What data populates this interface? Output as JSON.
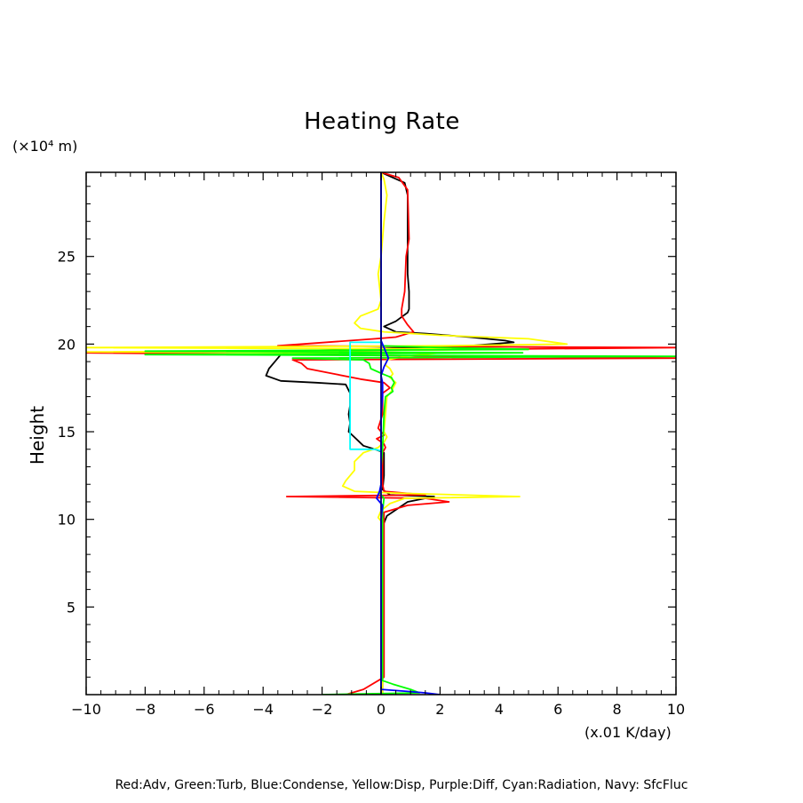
{
  "chart_data": {
    "type": "line",
    "title": "Heating Rate",
    "ylabel": "Height",
    "y_unit": "(×10⁴ m)",
    "x_unit": "(x.01 K/day)",
    "xlim": [
      -10,
      10
    ],
    "ylim": [
      0,
      29.8
    ],
    "xticks": [
      -10,
      -8,
      -6,
      -4,
      -2,
      0,
      2,
      4,
      6,
      8,
      10
    ],
    "yticks": [
      5,
      10,
      15,
      20,
      25
    ],
    "footer": "Red:Adv, Green:Turb, Blue:Condense, Yellow:Disp, Purple:Diff, Cyan:Radiation, Navy: SfcFluc",
    "series": [
      {
        "name": "Black",
        "color": "#000000",
        "points": [
          [
            0,
            29.8
          ],
          [
            0.8,
            29.2
          ],
          [
            0.9,
            28.5
          ],
          [
            0.9,
            24
          ],
          [
            0.95,
            23
          ],
          [
            0.95,
            22
          ],
          [
            0.9,
            21.8
          ],
          [
            0.5,
            21.3
          ],
          [
            0.1,
            21.0
          ],
          [
            0.5,
            20.7
          ],
          [
            1.5,
            20.6
          ],
          [
            3,
            20.4
          ],
          [
            4.2,
            20.2
          ],
          [
            4.5,
            20.1
          ],
          [
            3,
            19.9
          ],
          [
            1,
            19.8
          ],
          [
            -1,
            19.7
          ],
          [
            -3,
            19.6
          ],
          [
            -3.4,
            19.4
          ],
          [
            -3.6,
            19.0
          ],
          [
            -3.8,
            18.6
          ],
          [
            -3.9,
            18.2
          ],
          [
            -3.4,
            17.9
          ],
          [
            -2.2,
            17.8
          ],
          [
            -1.2,
            17.7
          ],
          [
            -1.05,
            17.2
          ],
          [
            -1.05,
            16.5
          ],
          [
            -1.1,
            16
          ],
          [
            -1.05,
            15.5
          ],
          [
            -1.1,
            15
          ],
          [
            -0.85,
            14.6
          ],
          [
            -0.6,
            14.2
          ],
          [
            -0.2,
            14.0
          ],
          [
            0.1,
            13.8
          ],
          [
            0.1,
            12.5
          ],
          [
            0.05,
            11.7
          ],
          [
            0.3,
            11.4
          ],
          [
            1.8,
            11.3
          ],
          [
            0.9,
            11.0
          ],
          [
            0.2,
            10.2
          ],
          [
            0.05,
            9.6
          ],
          [
            0.05,
            6
          ],
          [
            0.05,
            2
          ],
          [
            0.05,
            0
          ]
        ]
      },
      {
        "name": "Red",
        "color": "#ff0000",
        "points": [
          [
            0,
            29.8
          ],
          [
            0.6,
            29.5
          ],
          [
            0.9,
            28.8
          ],
          [
            0.95,
            26
          ],
          [
            0.85,
            25
          ],
          [
            0.8,
            23
          ],
          [
            0.7,
            22
          ],
          [
            0.7,
            21.6
          ],
          [
            0.9,
            21.1
          ],
          [
            1.1,
            20.7
          ],
          [
            0.5,
            20.4
          ],
          [
            -0.2,
            20.3
          ],
          [
            -3.5,
            19.9
          ],
          [
            10,
            19.8
          ],
          [
            -10,
            19.5
          ],
          [
            10,
            19.2
          ],
          [
            -3,
            19.1
          ],
          [
            -2.7,
            18.9
          ],
          [
            -2.5,
            18.6
          ],
          [
            -1.6,
            18.3
          ],
          [
            -0.7,
            18.0
          ],
          [
            0.1,
            17.8
          ],
          [
            0.3,
            17.5
          ],
          [
            0.05,
            17.2
          ],
          [
            0.05,
            16
          ],
          [
            -0.1,
            15.2
          ],
          [
            0.1,
            14.8
          ],
          [
            -0.15,
            14.6
          ],
          [
            0.1,
            14.3
          ],
          [
            0.15,
            14.1
          ],
          [
            0.05,
            13.8
          ],
          [
            0.05,
            12
          ],
          [
            0.1,
            11.6
          ],
          [
            1.5,
            11.4
          ],
          [
            -3.2,
            11.3
          ],
          [
            1.5,
            11.2
          ],
          [
            2.3,
            11.0
          ],
          [
            0.9,
            10.8
          ],
          [
            0.1,
            10.4
          ],
          [
            0.1,
            9.6
          ],
          [
            0.1,
            4
          ],
          [
            0.1,
            1
          ],
          [
            -0.6,
            0.3
          ],
          [
            -1.2,
            0
          ]
        ]
      },
      {
        "name": "Yellow",
        "color": "#ffff00",
        "points": [
          [
            0,
            29.8
          ],
          [
            0.1,
            29.4
          ],
          [
            0.2,
            28.5
          ],
          [
            0.1,
            27
          ],
          [
            0,
            25
          ],
          [
            -0.1,
            24
          ],
          [
            0,
            22.5
          ],
          [
            -0.1,
            22
          ],
          [
            -0.7,
            21.6
          ],
          [
            -0.9,
            21.2
          ],
          [
            -0.7,
            20.9
          ],
          [
            0.1,
            20.7
          ],
          [
            2,
            20.5
          ],
          [
            5,
            20.3
          ],
          [
            6.3,
            20.0
          ],
          [
            2,
            19.9
          ],
          [
            -10,
            19.8
          ],
          [
            5,
            19.7
          ],
          [
            -10,
            19.55
          ],
          [
            2,
            19.5
          ],
          [
            0.8,
            19.3
          ],
          [
            0.2,
            19.1
          ],
          [
            0.15,
            18.8
          ],
          [
            0.3,
            18.6
          ],
          [
            0.4,
            18.3
          ],
          [
            0.3,
            18.1
          ],
          [
            0.5,
            17.8
          ],
          [
            0.35,
            17.3
          ],
          [
            0.2,
            17.0
          ],
          [
            0.15,
            16
          ],
          [
            0.1,
            15
          ],
          [
            0.2,
            14.7
          ],
          [
            0.1,
            14.4
          ],
          [
            -0.1,
            14.1
          ],
          [
            -0.6,
            13.8
          ],
          [
            -0.9,
            13.3
          ],
          [
            -0.9,
            12.8
          ],
          [
            -1.2,
            12.2
          ],
          [
            -1.3,
            11.9
          ],
          [
            -0.9,
            11.6
          ],
          [
            0.5,
            11.5
          ],
          [
            4.7,
            11.3
          ],
          [
            0.8,
            11.2
          ],
          [
            0.3,
            10.9
          ],
          [
            0,
            10.5
          ],
          [
            -0.1,
            10.1
          ],
          [
            0.05,
            9.8
          ],
          [
            0.05,
            6
          ],
          [
            0.05,
            2
          ],
          [
            0.05,
            0
          ]
        ]
      },
      {
        "name": "Green",
        "color": "#00ff00",
        "points": [
          [
            0,
            19.9
          ],
          [
            2,
            19.8
          ],
          [
            5,
            19.7
          ],
          [
            -8,
            19.6
          ],
          [
            4.8,
            19.5
          ],
          [
            -8,
            19.4
          ],
          [
            10,
            19.3
          ],
          [
            -3,
            19.2
          ],
          [
            -0.6,
            19.1
          ],
          [
            -0.4,
            18.9
          ],
          [
            -0.35,
            18.6
          ],
          [
            0.05,
            18.3
          ],
          [
            0.35,
            18.1
          ],
          [
            0.45,
            17.8
          ],
          [
            0.35,
            17.5
          ],
          [
            0.4,
            17.3
          ],
          [
            0.15,
            17.0
          ],
          [
            0.1,
            16
          ],
          [
            0.05,
            14
          ],
          [
            0,
            13
          ],
          [
            0,
            12
          ],
          [
            -0.05,
            11.5
          ],
          [
            0.1,
            11.2
          ],
          [
            0.05,
            10.5
          ],
          [
            0.05,
            9.8
          ],
          [
            0.05,
            6
          ],
          [
            0.05,
            2
          ],
          [
            0.05,
            0.8
          ],
          [
            0.4,
            0.6
          ],
          [
            1.0,
            0.3
          ],
          [
            1.3,
            0.1
          ],
          [
            -2.0,
            0.0
          ]
        ]
      },
      {
        "name": "Blue",
        "color": "#0000ff",
        "points": [
          [
            0,
            29.8
          ],
          [
            0,
            20.2
          ],
          [
            0.1,
            19.8
          ],
          [
            0.25,
            19.2
          ],
          [
            0.1,
            18.7
          ],
          [
            0,
            18.2
          ],
          [
            0.05,
            17.8
          ],
          [
            0.05,
            17
          ],
          [
            0,
            16
          ],
          [
            0,
            12
          ],
          [
            -0.05,
            11.6
          ],
          [
            -0.15,
            11.2
          ],
          [
            0.05,
            10.8
          ],
          [
            0,
            10
          ],
          [
            0,
            5
          ],
          [
            0,
            1
          ],
          [
            0,
            0.3
          ],
          [
            0.8,
            0.2
          ],
          [
            1.5,
            0.1
          ],
          [
            2.0,
            0.0
          ]
        ]
      },
      {
        "name": "Cyan",
        "color": "#00ffff",
        "points": [
          [
            0,
            20.1
          ],
          [
            -1.05,
            20.1
          ],
          [
            -1.05,
            14.0
          ],
          [
            -0.2,
            14.0
          ],
          [
            0,
            13.9
          ]
        ]
      },
      {
        "name": "Navy",
        "color": "#000080",
        "points": [
          [
            0,
            29.8
          ],
          [
            0,
            0
          ]
        ]
      }
    ]
  }
}
